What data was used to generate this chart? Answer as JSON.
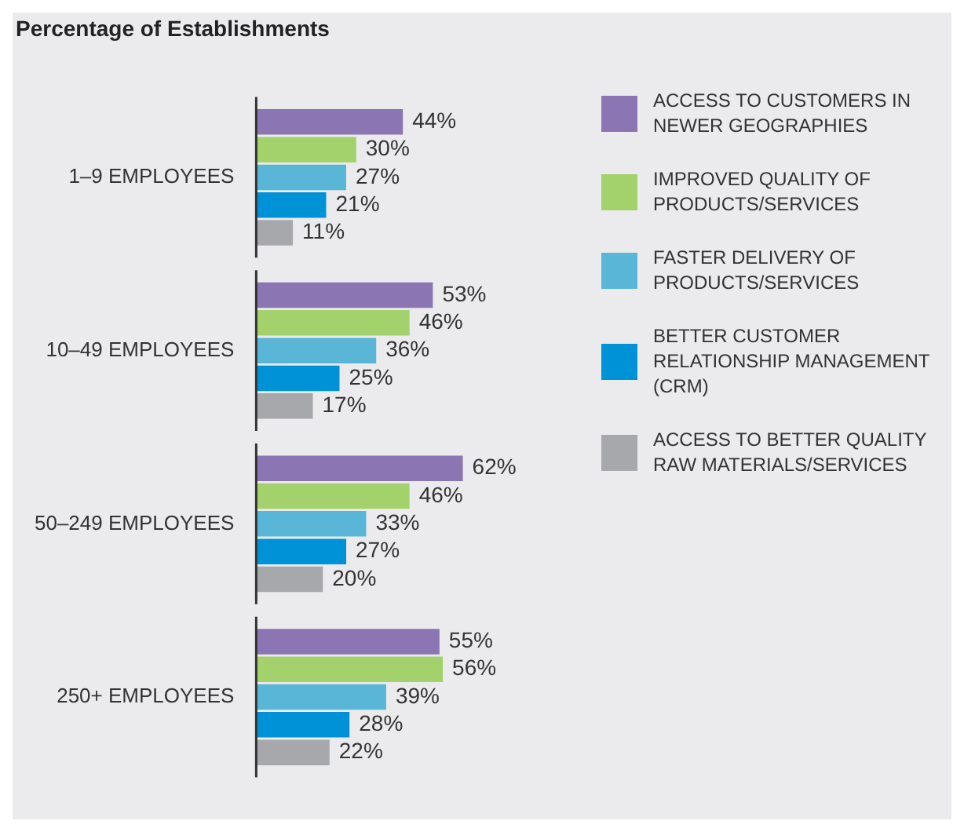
{
  "chart_data": {
    "type": "bar",
    "orientation": "horizontal",
    "title": "Percentage of Establishments",
    "categories": [
      "1–9 EMPLOYEES",
      "10–49 EMPLOYEES",
      "50–249 EMPLOYEES",
      "250+ EMPLOYEES"
    ],
    "legend": "right",
    "grid": false,
    "tick_labels": "y",
    "series": [
      {
        "name": "ACCESS TO CUSTOMERS IN NEWER GEOGRAPHIES",
        "color": "#8b75b3",
        "values": [
          44,
          53,
          62,
          55
        ],
        "value_labels": [
          "44%",
          "53%",
          "62%",
          "55%"
        ]
      },
      {
        "name": "IMPROVED QUALITY OF PRODUCTS/SERVICES",
        "color": "#a3d16c",
        "values": [
          30,
          46,
          46,
          56
        ],
        "value_labels": [
          "30%",
          "46%",
          "46%",
          "56%"
        ]
      },
      {
        "name": "FASTER DELIVERY OF PRODUCTS/SERVICES",
        "color": "#5ab6d6",
        "values": [
          27,
          36,
          33,
          39
        ],
        "value_labels": [
          "27%",
          "36%",
          "33%",
          "39%"
        ]
      },
      {
        "name": "BETTER CUSTOMER RELATIONSHIP MANAGEMENT (CRM)",
        "color": "#0092d6",
        "values": [
          21,
          25,
          27,
          28
        ],
        "value_labels": [
          "21%",
          "25%",
          "27%",
          "28%"
        ]
      },
      {
        "name": "ACCESS TO BETTER QUALITY RAW MATERIALS/SERVICES",
        "color": "#a7a8ab",
        "values": [
          11,
          17,
          20,
          22
        ],
        "value_labels": [
          "11%",
          "17%",
          "20%",
          "22%"
        ]
      }
    ]
  }
}
